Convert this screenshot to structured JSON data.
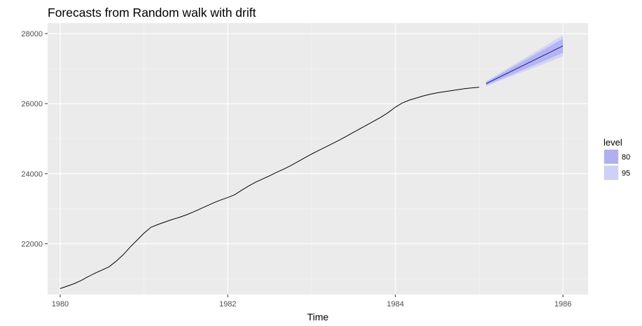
{
  "chart_data": {
    "type": "line",
    "title": "Forecasts from Random walk with drift",
    "xlabel": "Time",
    "ylabel": "",
    "xlim": [
      1979.85,
      1986.3
    ],
    "ylim": [
      20550,
      28300
    ],
    "x_ticks": [
      1980,
      1982,
      1984,
      1986
    ],
    "x_tick_labels": [
      "1980",
      "1982",
      "1984",
      "1986"
    ],
    "y_ticks": [
      22000,
      24000,
      26000,
      28000
    ],
    "y_tick_labels": [
      "22000",
      "24000",
      "26000",
      "28000"
    ],
    "grid": true,
    "legend": {
      "title": "level",
      "placement": "right",
      "entries": [
        {
          "label": "80",
          "color": "#b0b0f0"
        },
        {
          "label": "95",
          "color": "#cfd0f7"
        }
      ]
    },
    "series": [
      {
        "kind": "observed",
        "color": "#000000",
        "x": [
          1980.0,
          1980.083,
          1980.167,
          1980.25,
          1980.333,
          1980.417,
          1980.5,
          1980.583,
          1980.667,
          1980.75,
          1980.833,
          1980.917,
          1981.0,
          1981.083,
          1981.167,
          1981.25,
          1981.333,
          1981.417,
          1981.5,
          1981.583,
          1981.667,
          1981.75,
          1981.833,
          1981.917,
          1982.0,
          1982.083,
          1982.167,
          1982.25,
          1982.333,
          1982.417,
          1982.5,
          1982.583,
          1982.667,
          1982.75,
          1982.833,
          1982.917,
          1983.0,
          1983.083,
          1983.167,
          1983.25,
          1983.333,
          1983.417,
          1983.5,
          1983.583,
          1983.667,
          1983.75,
          1983.833,
          1983.917,
          1984.0,
          1984.083,
          1984.167,
          1984.25,
          1984.333,
          1984.417,
          1984.5,
          1984.583,
          1984.667,
          1984.75,
          1984.833,
          1984.917,
          1985.0
        ],
        "y": [
          20720,
          20790,
          20860,
          20950,
          21060,
          21160,
          21250,
          21340,
          21500,
          21680,
          21900,
          22100,
          22300,
          22470,
          22550,
          22620,
          22690,
          22750,
          22820,
          22900,
          22990,
          23080,
          23170,
          23250,
          23320,
          23400,
          23530,
          23650,
          23760,
          23850,
          23940,
          24040,
          24130,
          24230,
          24340,
          24450,
          24560,
          24660,
          24760,
          24860,
          24960,
          25070,
          25180,
          25290,
          25400,
          25510,
          25620,
          25750,
          25900,
          26020,
          26100,
          26160,
          26220,
          26270,
          26310,
          26340,
          26370,
          26400,
          26430,
          26450,
          26470
        ]
      },
      {
        "kind": "forecast",
        "color": "#1a1aa0",
        "x": [
          1985.083,
          1986.0
        ],
        "y": [
          26570,
          27650
        ]
      }
    ],
    "bands": [
      {
        "level": "95",
        "color": "#cfd0f7",
        "x": [
          1985.083,
          1986.0
        ],
        "lower": [
          26500,
          27350
        ],
        "upper": [
          26640,
          27950
        ]
      },
      {
        "level": "80",
        "color": "#b0b0f0",
        "x": [
          1985.083,
          1986.0
        ],
        "lower": [
          26525,
          27450
        ],
        "upper": [
          26615,
          27850
        ]
      }
    ]
  }
}
